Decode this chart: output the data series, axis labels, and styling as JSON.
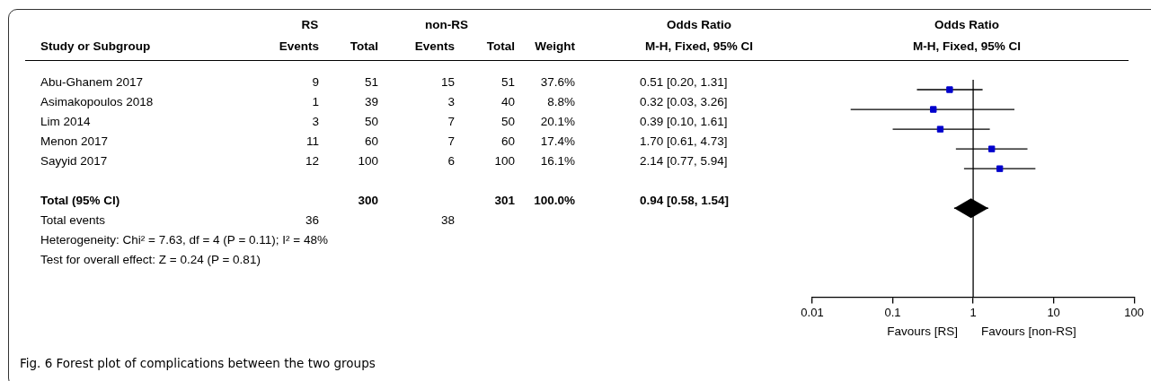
{
  "chart_data": [
    {
      "type": "other",
      "xlabel": "Study or Subgroup",
      "categories": [
        "Abu-Ghanem 2017",
        "Asimakopoulos 2018",
        "Lim 2014",
        "Menon 2017",
        "Sayyid 2017",
        null,
        "Total (95% CI)",
        "Total events"
      ],
      "series": [
        {
          "name": "Events",
          "values": [
            9,
            1,
            3,
            11,
            12,
            null,
            null,
            36
          ]
        },
        {
          "name": "Total",
          "values": [
            51,
            39,
            50,
            60,
            100,
            null,
            300,
            null
          ]
        },
        {
          "name": "Events",
          "values": [
            15,
            3,
            7,
            7,
            6,
            null,
            null,
            38
          ]
        },
        {
          "name": "Total",
          "values": [
            51,
            40,
            50,
            60,
            100,
            null,
            301,
            null
          ]
        },
        {
          "name": "Weight",
          "values": [
            37.6,
            8.8,
            20.1,
            17.4,
            16.1,
            null,
            100.0,
            null
          ],
          "value_labels": [
            "37.6%",
            "8.8%",
            "20.1%",
            "17.4%",
            "16.1%",
            null,
            "100.0%",
            null
          ]
        },
        {
          "name": "M-H, Fixed, 95% CI",
          "values": [
            0.51,
            0.32,
            0.39,
            1.7,
            2.14,
            null,
            0.94,
            null
          ],
          "value_labels": [
            "0.51 [0.20, 1.31]",
            "0.32 [0.03, 3.26]",
            "0.39 [0.10, 1.61]",
            "1.70 [0.61, 4.73]",
            "2.14 [0.77, 5.94]",
            null,
            "0.94 [0.58, 1.54]",
            null
          ]
        }
      ],
      "data_labels": true,
      "annotations": [
        "RS",
        "non-RS",
        "Odds Ratio",
        "Heterogeneity: Chi² = 7.63, df = 4 (P = 0.11); I² = 48%",
        "Test for overall effect: Z = 0.24 (P = 0.81)",
        "Fig. 6 Forest plot of complications between the two groups"
      ]
    },
    {
      "type": "scatter",
      "title": "Odds Ratio",
      "subtitle": "M-H, Fixed, 95% CI",
      "orientation": "horizontal",
      "categories": [
        null,
        null,
        null,
        null,
        null,
        null,
        null,
        null,
        null,
        null,
        null
      ],
      "series": [
        {
          "color": "#0000cc",
          "marker": "square",
          "values": [
            0.51,
            0.32,
            0.39,
            1.7,
            2.14,
            null,
            null,
            null,
            null,
            null,
            null
          ],
          "errors": [
            [
              0.2,
              1.31
            ],
            [
              0.03,
              3.26
            ],
            [
              0.1,
              1.61
            ],
            [
              0.61,
              4.73
            ],
            [
              0.77,
              5.94
            ],
            null,
            null,
            null,
            null,
            null,
            null
          ]
        },
        {
          "color": "#000000",
          "marker": "diamond",
          "values": [
            null,
            null,
            null,
            null,
            null,
            null,
            0.94,
            null,
            null,
            null,
            null
          ],
          "errors": [
            null,
            null,
            null,
            null,
            null,
            null,
            [
              0.58,
              1.54
            ],
            null,
            null,
            null,
            null
          ]
        }
      ],
      "log": "x",
      "xlim": [
        0.01,
        100
      ],
      "xticks": [
        0.01,
        0.1,
        1,
        10,
        100
      ],
      "tick_labels": "x",
      "grid": false,
      "legend": false,
      "ref_lines": [
        {
          "axis": "x",
          "value": 1,
          "color": "#000000"
        }
      ],
      "annotations": [
        "Favours [RS]",
        "Favours [non-RS]"
      ]
    }
  ]
}
